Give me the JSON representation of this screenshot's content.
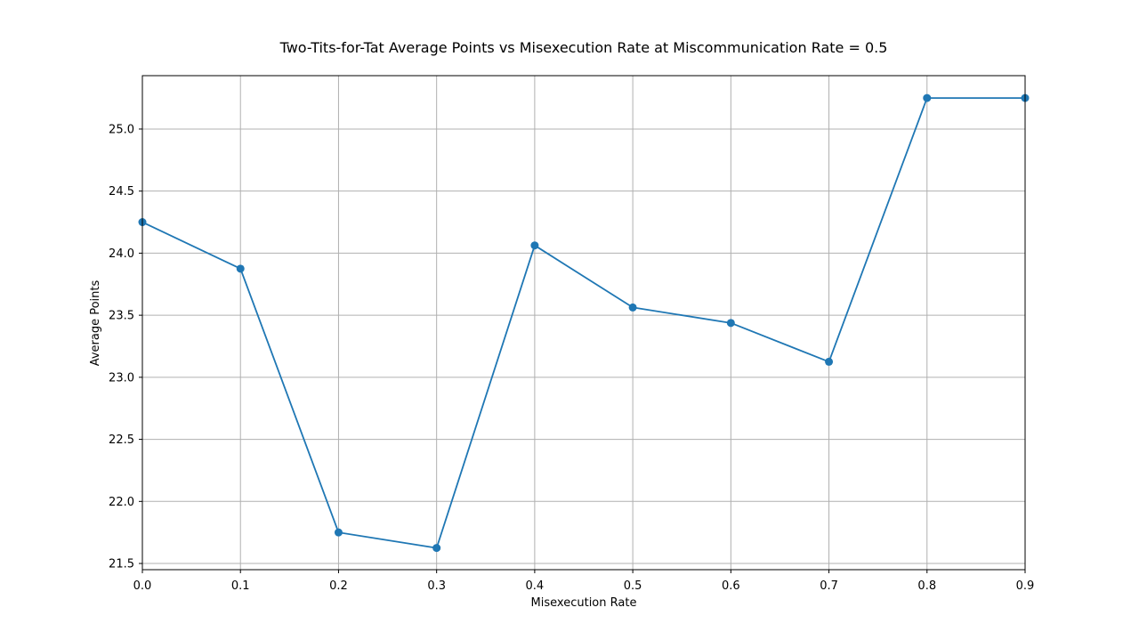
{
  "chart_data": {
    "type": "line",
    "title": "Two-Tits-for-Tat Average Points vs Misexecution Rate at Miscommunication Rate = 0.5",
    "xlabel": "Misexecution Rate",
    "ylabel": "Average Points",
    "x": [
      0.0,
      0.1,
      0.2,
      0.3,
      0.4,
      0.5,
      0.6,
      0.7,
      0.8,
      0.9
    ],
    "y": [
      24.25,
      23.875,
      21.75,
      21.625,
      24.0625,
      23.5625,
      23.4375,
      23.125,
      25.25,
      25.25
    ],
    "xlim": [
      0.0,
      0.9
    ],
    "ylim": [
      21.45,
      25.43
    ],
    "x_ticks": [
      0.0,
      0.1,
      0.2,
      0.3,
      0.4,
      0.5,
      0.6,
      0.7,
      0.8,
      0.9
    ],
    "x_tick_labels": [
      "0.0",
      "0.1",
      "0.2",
      "0.3",
      "0.4",
      "0.5",
      "0.6",
      "0.7",
      "0.8",
      "0.9"
    ],
    "y_ticks": [
      21.5,
      22.0,
      22.5,
      23.0,
      23.5,
      24.0,
      24.5,
      25.0
    ],
    "y_tick_labels": [
      "21.5",
      "22.0",
      "22.5",
      "23.0",
      "23.5",
      "24.0",
      "24.5",
      "25.0"
    ],
    "grid": true,
    "legend": "none",
    "markers": "circle",
    "colors": {
      "line": "#1f77b4",
      "grid": "#b0b0b0",
      "axes": "#000000"
    }
  }
}
